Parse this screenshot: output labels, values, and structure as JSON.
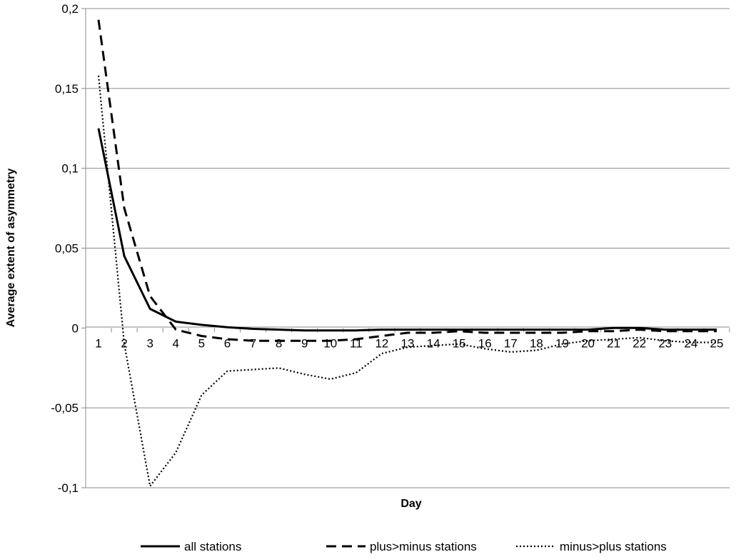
{
  "chart_data": {
    "type": "line",
    "title": "",
    "xlabel": "Day",
    "ylabel": "Average extent of asymmetry",
    "x": [
      1,
      2,
      3,
      4,
      5,
      6,
      7,
      8,
      9,
      10,
      11,
      12,
      13,
      14,
      15,
      16,
      17,
      18,
      19,
      20,
      21,
      22,
      23,
      24,
      25
    ],
    "x_tick_labels": [
      "1",
      "2",
      "3",
      "4",
      "5",
      "6",
      "7",
      "8",
      "9",
      "10",
      "11",
      "12",
      "13",
      "14",
      "15",
      "16",
      "17",
      "18",
      "19",
      "20",
      "21",
      "22",
      "23",
      "24",
      "25"
    ],
    "ylim": [
      -0.1,
      0.2
    ],
    "y_ticks": [
      -0.1,
      -0.05,
      0,
      0.05,
      0.1,
      0.15,
      0.2
    ],
    "y_tick_labels": [
      "-0,1",
      "-0,05",
      "0",
      "0,05",
      "0,1",
      "0,15",
      "0,2"
    ],
    "grid": "horizontal",
    "legend_position": "bottom",
    "series": [
      {
        "name": "all stations",
        "style": "solid",
        "color": "#000000",
        "values": [
          0.125,
          0.045,
          0.012,
          0.004,
          0.002,
          0.0005,
          -0.0005,
          -0.001,
          -0.0015,
          -0.0015,
          -0.0015,
          -0.001,
          -0.001,
          -0.001,
          -0.001,
          -0.001,
          -0.001,
          -0.001,
          -0.001,
          -0.001,
          0.0,
          0.0,
          -0.001,
          -0.001,
          -0.001
        ]
      },
      {
        "name": "plus>minus stations",
        "style": "dashed",
        "color": "#000000",
        "values": [
          0.193,
          0.075,
          0.02,
          -0.001,
          -0.005,
          -0.007,
          -0.008,
          -0.008,
          -0.008,
          -0.008,
          -0.007,
          -0.005,
          -0.003,
          -0.003,
          -0.002,
          -0.003,
          -0.003,
          -0.003,
          -0.003,
          -0.002,
          -0.002,
          -0.001,
          -0.002,
          -0.002,
          -0.002
        ]
      },
      {
        "name": "minus>plus stations",
        "style": "dotted",
        "color": "#000000",
        "values": [
          0.158,
          -0.01,
          -0.099,
          -0.078,
          -0.042,
          -0.027,
          -0.026,
          -0.025,
          -0.029,
          -0.032,
          -0.028,
          -0.016,
          -0.012,
          -0.011,
          -0.01,
          -0.013,
          -0.015,
          -0.014,
          -0.01,
          -0.008,
          -0.007,
          -0.006,
          -0.008,
          -0.009,
          -0.009
        ]
      }
    ]
  }
}
